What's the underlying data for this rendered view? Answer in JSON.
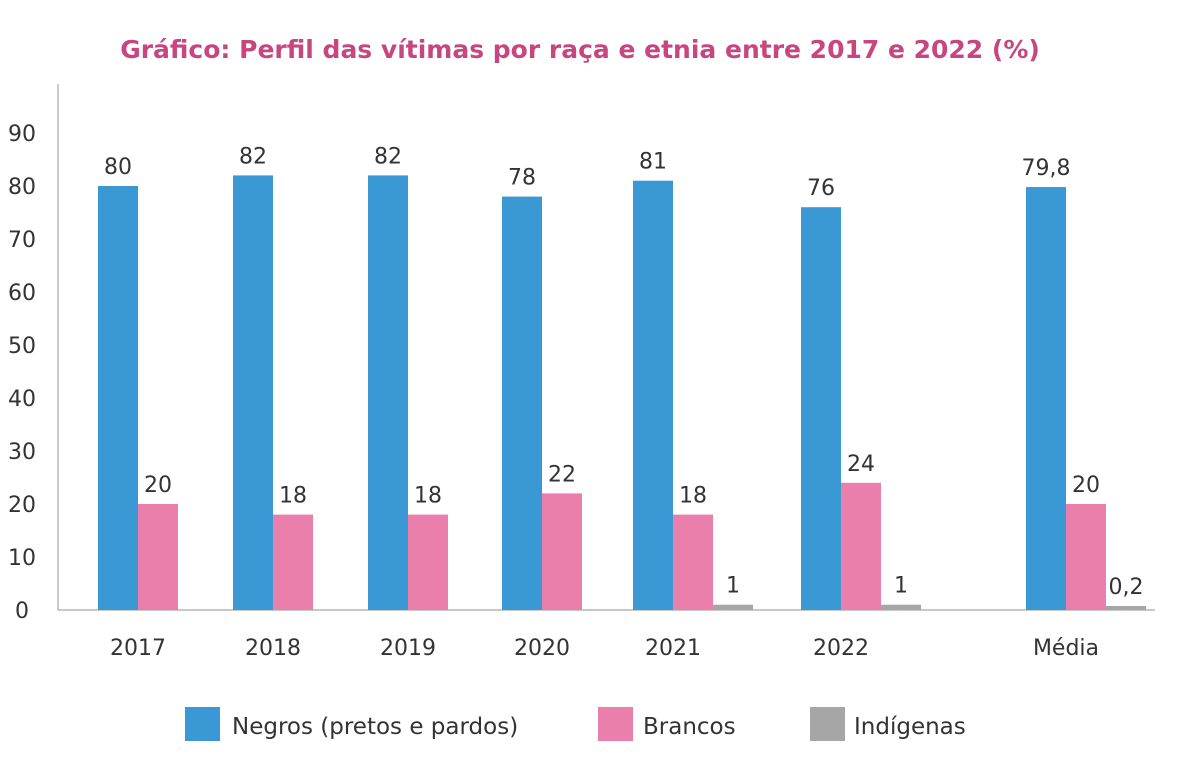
{
  "chart_data": {
    "type": "bar",
    "title": "Gráfico: Perfil das vítimas por raça e etnia entre 2017 e 2022 (%)",
    "title_color": "#c8467e",
    "categories": [
      "2017",
      "2018",
      "2019",
      "2020",
      "2021",
      "2022",
      "Média"
    ],
    "series": [
      {
        "name": "Negros (pretos e pardos)",
        "color": "#3a98d4",
        "values": [
          80,
          82,
          82,
          78,
          81,
          76,
          79.8
        ],
        "labels": [
          "80",
          "82",
          "82",
          "78",
          "81",
          "76",
          "79,8"
        ]
      },
      {
        "name": "Brancos",
        "color": "#e97faa",
        "values": [
          20,
          18,
          18,
          22,
          18,
          24,
          20
        ],
        "labels": [
          "20",
          "18",
          "18",
          "22",
          "18",
          "24",
          "20"
        ]
      },
      {
        "name": "Indígenas",
        "color": "#a6a6a6",
        "values": [
          null,
          null,
          null,
          null,
          1,
          1,
          0.2
        ],
        "labels": [
          "",
          "",
          "",
          "",
          "1",
          "1",
          "0,2"
        ]
      }
    ],
    "yticks": [
      0,
      10,
      20,
      30,
      40,
      50,
      60,
      70,
      80,
      90
    ],
    "ylim": [
      0,
      100
    ],
    "grid": false,
    "legend": "bottom"
  }
}
